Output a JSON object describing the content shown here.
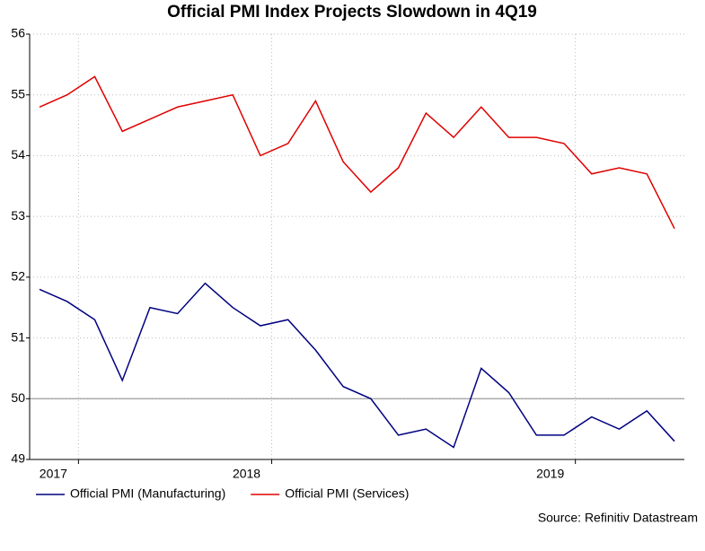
{
  "chart_data": {
    "type": "line",
    "title": "Official PMI Index Projects Slowdown in 4Q19",
    "source": "Source: Refinitiv Datastream",
    "categories": [
      "2017",
      null,
      null,
      null,
      null,
      null,
      null,
      "2018",
      null,
      null,
      null,
      null,
      null,
      null,
      null,
      null,
      null,
      null,
      "2019",
      null,
      null,
      null,
      null,
      null
    ],
    "series": [
      {
        "name": "Official PMI (Manufacturing)",
        "color": "#000080",
        "values": [
          51.8,
          51.6,
          51.3,
          50.3,
          51.5,
          51.4,
          51.9,
          51.5,
          51.2,
          51.3,
          50.8,
          50.2,
          50.0,
          49.4,
          49.5,
          49.2,
          50.5,
          50.1,
          49.4,
          49.4,
          49.7,
          49.5,
          49.8,
          49.3
        ]
      },
      {
        "name": "Official PMI (Services)",
        "color": "#e00000",
        "values": [
          54.8,
          55.0,
          55.3,
          54.4,
          54.6,
          54.8,
          54.9,
          55.0,
          54.0,
          54.2,
          54.9,
          53.9,
          53.4,
          53.8,
          54.7,
          54.3,
          54.8,
          54.3,
          54.3,
          54.2,
          53.7,
          53.8,
          53.7,
          52.8
        ]
      }
    ],
    "ylim": [
      49,
      56
    ],
    "yticks": [
      49,
      50,
      51,
      52,
      53,
      54,
      55,
      56
    ],
    "reference_line": 50,
    "grid": true,
    "legend": "bottom-left"
  }
}
